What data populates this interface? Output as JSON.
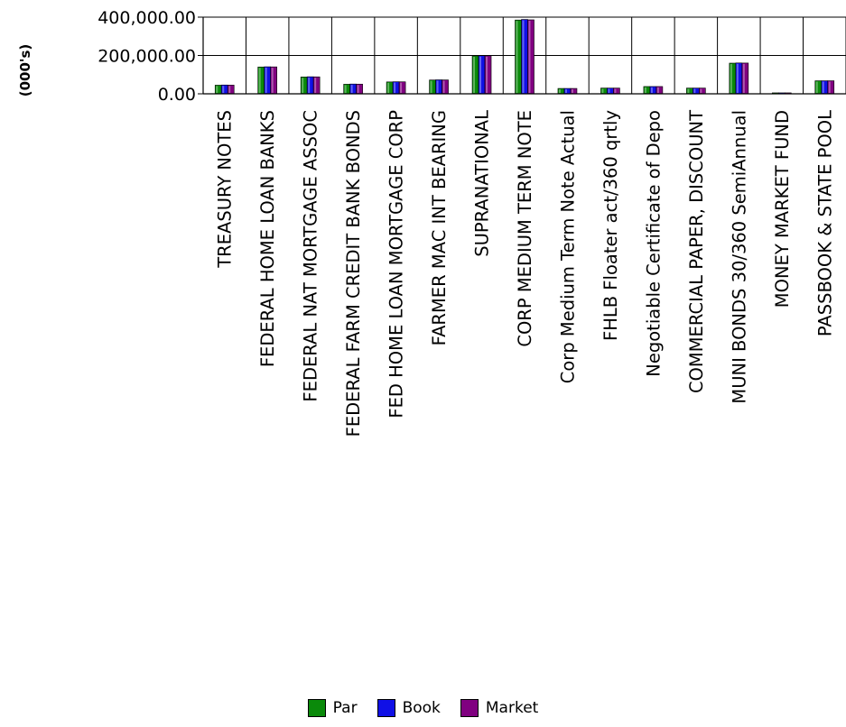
{
  "chart_data": {
    "type": "bar",
    "ylabel": "(000's)",
    "ylim": [
      0,
      400000
    ],
    "yticks": [
      "400,000.00",
      "200,000.00",
      "0.00"
    ],
    "ytick_values": [
      400000,
      200000,
      0
    ],
    "grid": "horizontal",
    "legend_position": "bottom",
    "categories": [
      "TREASURY NOTES",
      "FEDERAL HOME LOAN BANKS",
      "FEDERAL NAT MORTGAGE ASSOC",
      "FEDERAL FARM CREDIT BANK BONDS",
      "FED HOME LOAN MORTGAGE CORP",
      "FARMER MAC INT BEARING",
      "SUPRANATIONAL",
      "CORP MEDIUM TERM NOTE",
      "Corp Medium Term Note Actual",
      "FHLB Floater act/360 qrtly",
      "Negotiable Certificate of Depo",
      "COMMERCIAL PAPER, DISCOUNT",
      "MUNI BONDS 30/360 SemiAnnual",
      "MONEY MARKET FUND",
      "PASSBOOK & STATE POOL"
    ],
    "series": [
      {
        "name": "Par",
        "color": "#0a8a0a",
        "values": [
          45000,
          140000,
          88000,
          50000,
          62000,
          72000,
          198000,
          385000,
          28000,
          30000,
          38000,
          30000,
          160000,
          5000,
          68000
        ]
      },
      {
        "name": "Book",
        "color": "#1010e6",
        "values": [
          46000,
          141000,
          89000,
          51000,
          63000,
          73000,
          199000,
          388000,
          28000,
          30000,
          38000,
          30000,
          161000,
          5000,
          68000
        ]
      },
      {
        "name": "Market",
        "color": "#800080",
        "values": [
          45500,
          140500,
          88500,
          50500,
          62500,
          72500,
          198500,
          386000,
          28000,
          30000,
          38000,
          30000,
          160500,
          5000,
          68000
        ]
      }
    ]
  }
}
